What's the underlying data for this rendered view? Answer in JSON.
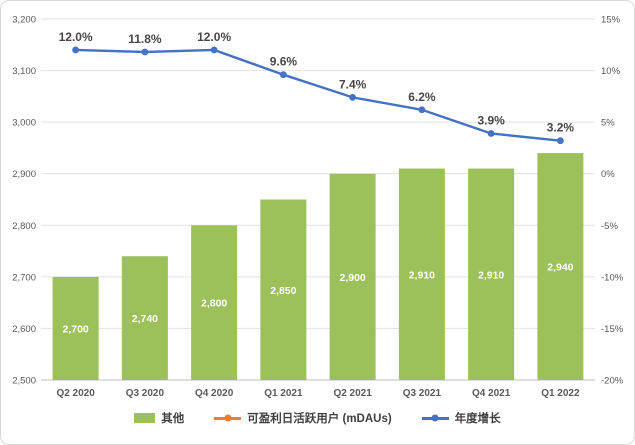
{
  "chart": {
    "background": "#FFFFFF",
    "border_color": "#D9D9D9"
  },
  "chart_data": {
    "type": "combo",
    "title": "",
    "categories": [
      "Q2 2020",
      "Q3 2020",
      "Q4 2020",
      "Q1 2021",
      "Q2 2021",
      "Q3 2021",
      "Q4 2021",
      "Q1 2022"
    ],
    "series": [
      {
        "name": "其他",
        "type": "bar",
        "axis": "left",
        "color": "#9CC05A",
        "values": [
          2700,
          2740,
          2800,
          2850,
          2900,
          2910,
          2910,
          2940
        ],
        "labels": [
          "2,700",
          "2,740",
          "2,800",
          "2,850",
          "2,900",
          "2,910",
          "2,910",
          "2,940"
        ]
      },
      {
        "name": "可盈利日活跃用户 (mDAUs)",
        "type": "line",
        "axis": "left",
        "color": "#ED7D31",
        "values": [],
        "labels": []
      },
      {
        "name": "年度增长",
        "type": "line",
        "axis": "right",
        "color": "#4472C4",
        "values": [
          12.0,
          11.8,
          12.0,
          9.6,
          7.4,
          6.2,
          3.9,
          3.2
        ],
        "labels": [
          "12.0%",
          "11.8%",
          "12.0%",
          "9.6%",
          "7.4%",
          "6.2%",
          "3.9%",
          "3.2%"
        ]
      }
    ],
    "left_axis": {
      "min": 2500,
      "max": 3200,
      "step": 100,
      "tick_labels": [
        "2,500",
        "2,600",
        "2,700",
        "2,800",
        "2,900",
        "3,000",
        "3,100",
        "3,200"
      ]
    },
    "right_axis": {
      "min": -20,
      "max": 15,
      "step": 5,
      "tick_labels": [
        "-20%",
        "-15%",
        "-10%",
        "-5%",
        "0%",
        "5%",
        "10%",
        "15%"
      ]
    },
    "grid": true,
    "grid_color": "#E2E2E2",
    "axis_line_color": "#BFBFBF",
    "text_color": "#595959",
    "bar_label_color": "#FFFFFF",
    "legend_position": "bottom"
  }
}
